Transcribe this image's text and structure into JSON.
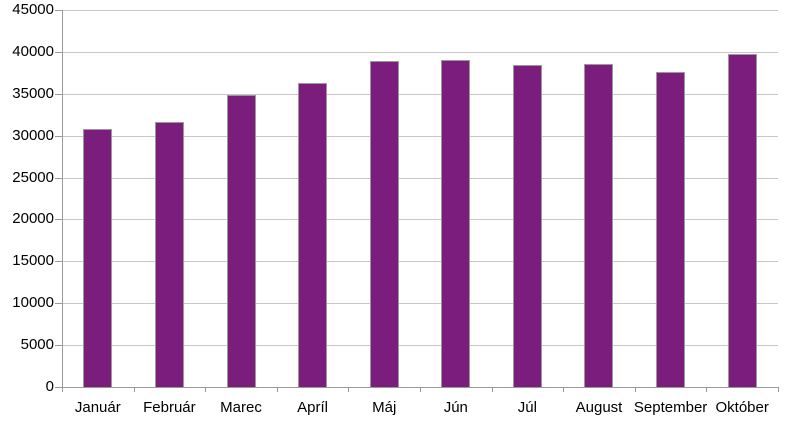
{
  "chart_data": {
    "type": "bar",
    "title": "",
    "xlabel": "",
    "ylabel": "",
    "categories": [
      "Január",
      "Február",
      "Marec",
      "Apríl",
      "Máj",
      "Jún",
      "Júl",
      "August",
      "September",
      "Október"
    ],
    "values": [
      30800,
      31600,
      34900,
      36300,
      38900,
      39000,
      38400,
      38500,
      37600,
      39700
    ],
    "ylim": [
      0,
      45000
    ],
    "yticks": [
      0,
      5000,
      10000,
      15000,
      20000,
      25000,
      30000,
      35000,
      40000,
      45000
    ],
    "grid": true,
    "legend": "none",
    "colors": {
      "bar_fill": "#7B1D7C",
      "bar_border": "#999999",
      "gridline": "#C6C6C6",
      "axis": "#999999",
      "background": "#FFFFFF",
      "text": "#000000"
    }
  }
}
